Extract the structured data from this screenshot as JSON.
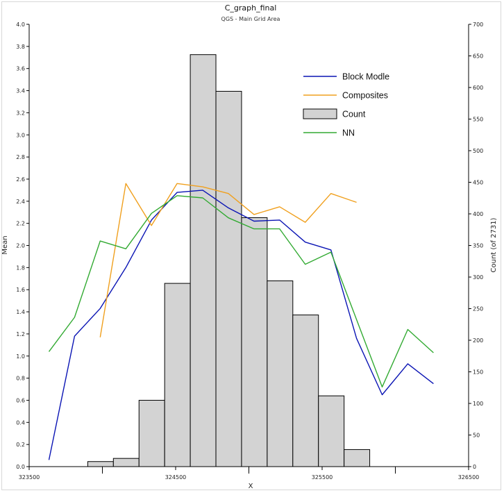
{
  "chart_data": {
    "type": "bar",
    "title": "C_graph_final",
    "subtitle": "QGS - Main Grid Area",
    "xlabel": "X",
    "ylabel_left": "Mean",
    "ylabel_right": "Count (of 2731)",
    "xlim": [
      323500,
      326500
    ],
    "ylim_left": [
      0,
      4.0
    ],
    "ylim_right": [
      0,
      700
    ],
    "x_ticks": [
      323500,
      324500,
      325500,
      326500
    ],
    "x_tick_labels": [
      "323500",
      "324500",
      "325500",
      "326500"
    ],
    "y_left_ticks": [
      0,
      0.2,
      0.4,
      0.6,
      0.8,
      1.0,
      1.2,
      1.4,
      1.6,
      1.8,
      2.0,
      2.2,
      2.4,
      2.6,
      2.8,
      3.0,
      3.2,
      3.4,
      3.6,
      3.8,
      4.0
    ],
    "y_left_tick_labels": [
      "0.0",
      "0.2",
      "0.4",
      "0.6",
      "0.8",
      "1.0",
      "1.2",
      "1.4",
      "1.6",
      "1.8",
      "2.0",
      "2.2",
      "2.4",
      "2.6",
      "2.8",
      "3.0",
      "3.2",
      "3.4",
      "3.6",
      "3.8",
      "4.0"
    ],
    "y_right_ticks": [
      0,
      50,
      100,
      150,
      200,
      250,
      300,
      350,
      400,
      450,
      500,
      550,
      600,
      650,
      700
    ],
    "y_right_tick_labels": [
      "0",
      "50",
      "100",
      "150",
      "200",
      "250",
      "300",
      "350",
      "400",
      "450",
      "500",
      "550",
      "600",
      "650",
      "700"
    ],
    "count_bars": {
      "name": "Count",
      "axis": "right",
      "color": "#d3d3d3",
      "edge_color": "#000000",
      "bins": [
        {
          "x0": 323900,
          "x1": 324075,
          "value": 8
        },
        {
          "x0": 324075,
          "x1": 324250,
          "value": 13
        },
        {
          "x0": 324250,
          "x1": 324425,
          "value": 105
        },
        {
          "x0": 324425,
          "x1": 324600,
          "value": 290
        },
        {
          "x0": 324600,
          "x1": 324775,
          "value": 652
        },
        {
          "x0": 324775,
          "x1": 324950,
          "value": 594
        },
        {
          "x0": 324950,
          "x1": 325125,
          "value": 394
        },
        {
          "x0": 325125,
          "x1": 325300,
          "value": 294
        },
        {
          "x0": 325300,
          "x1": 325475,
          "value": 240
        },
        {
          "x0": 325475,
          "x1": 325650,
          "value": 112
        },
        {
          "x0": 325650,
          "x1": 325825,
          "value": 27
        }
      ]
    },
    "series": [
      {
        "name": "Block Modle",
        "axis": "left",
        "color": "#0a14b4",
        "points": [
          [
            323635,
            0.06
          ],
          [
            323810,
            1.18
          ],
          [
            323985,
            1.43
          ],
          [
            324160,
            1.8
          ],
          [
            324335,
            2.23
          ],
          [
            324510,
            2.48
          ],
          [
            324685,
            2.5
          ],
          [
            324860,
            2.34
          ],
          [
            325035,
            2.22
          ],
          [
            325210,
            2.23
          ],
          [
            325385,
            2.03
          ],
          [
            325560,
            1.96
          ],
          [
            325735,
            1.16
          ],
          [
            325910,
            0.65
          ],
          [
            326085,
            0.93
          ],
          [
            326260,
            0.75
          ]
        ]
      },
      {
        "name": "Composites",
        "axis": "left",
        "color": "#f0a01e",
        "points": [
          [
            323985,
            1.17
          ],
          [
            324160,
            2.56
          ],
          [
            324335,
            2.18
          ],
          [
            324510,
            2.56
          ],
          [
            324685,
            2.53
          ],
          [
            324860,
            2.47
          ],
          [
            325035,
            2.28
          ],
          [
            325210,
            2.35
          ],
          [
            325385,
            2.21
          ],
          [
            325560,
            2.47
          ],
          [
            325735,
            2.39
          ]
        ]
      },
      {
        "name": "NN",
        "axis": "left",
        "color": "#32aa32",
        "points": [
          [
            323635,
            1.04
          ],
          [
            323810,
            1.35
          ],
          [
            323985,
            2.04
          ],
          [
            324160,
            1.97
          ],
          [
            324335,
            2.29
          ],
          [
            324510,
            2.45
          ],
          [
            324685,
            2.43
          ],
          [
            324860,
            2.25
          ],
          [
            325035,
            2.15
          ],
          [
            325210,
            2.15
          ],
          [
            325385,
            1.83
          ],
          [
            325560,
            1.94
          ],
          [
            325735,
            1.33
          ],
          [
            325910,
            0.72
          ],
          [
            326085,
            1.24
          ],
          [
            326260,
            1.03
          ]
        ]
      }
    ],
    "legend": {
      "placement": "top-right",
      "entries": [
        {
          "label": "Block Modle",
          "kind": "line",
          "color": "#0a14b4"
        },
        {
          "label": "Composites",
          "kind": "line",
          "color": "#f0a01e"
        },
        {
          "label": "Count",
          "kind": "box",
          "color": "#d3d3d3"
        },
        {
          "label": "NN",
          "kind": "line",
          "color": "#32aa32"
        }
      ]
    },
    "grid": false
  }
}
